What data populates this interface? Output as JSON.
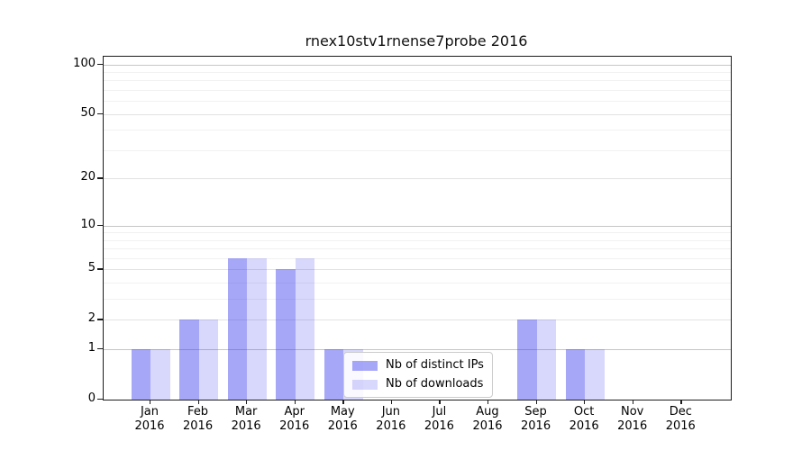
{
  "chart_data": {
    "type": "bar",
    "title": "rnex10stv1rnense7probe 2016",
    "x_months": [
      "Jan",
      "Feb",
      "Mar",
      "Apr",
      "May",
      "Jun",
      "Jul",
      "Aug",
      "Sep",
      "Oct",
      "Nov",
      "Dec"
    ],
    "x_year": "2016",
    "categories": [
      "Jan 2016",
      "Feb 2016",
      "Mar 2016",
      "Apr 2016",
      "May 2016",
      "Jun 2016",
      "Jul 2016",
      "Aug 2016",
      "Sep 2016",
      "Oct 2016",
      "Nov 2016",
      "Dec 2016"
    ],
    "series": [
      {
        "name": "Nb of distinct IPs",
        "color": "rgba(60,60,240,0.45)",
        "values": [
          1,
          2,
          6,
          5,
          1,
          0,
          0,
          0,
          2,
          1,
          0,
          0
        ]
      },
      {
        "name": "Nb of downloads",
        "color": "rgba(60,60,240,0.20)",
        "values": [
          1,
          2,
          6,
          6,
          1,
          0,
          0,
          0,
          2,
          1,
          0,
          0
        ]
      }
    ],
    "yscale": "log1p",
    "ylim": [
      0,
      110
    ],
    "y_major_ticks": [
      0,
      1,
      2,
      5,
      10,
      20,
      50,
      100
    ],
    "y_minor_ticks": [
      3,
      4,
      6,
      7,
      8,
      9,
      30,
      40,
      60,
      70,
      80,
      90
    ],
    "grid": "on",
    "legend_position": "lower center"
  }
}
